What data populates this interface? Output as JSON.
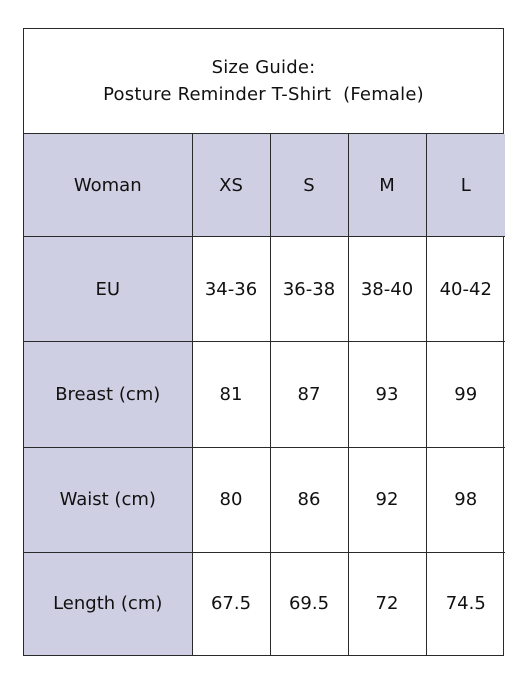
{
  "title": {
    "line1": "Size Guide:",
    "line2": "Posture Reminder T-Shirt  (Female)"
  },
  "table": {
    "header": {
      "label": "Woman",
      "sizes": [
        "XS",
        "S",
        "M",
        "L"
      ]
    },
    "rows": [
      {
        "label": "EU",
        "values": [
          "34-36",
          "36-38",
          "38-40",
          "40-42"
        ]
      },
      {
        "label": "Breast (cm)",
        "values": [
          "81",
          "87",
          "93",
          "99"
        ]
      },
      {
        "label": "Waist (cm)",
        "values": [
          "80",
          "86",
          "92",
          "98"
        ]
      },
      {
        "label": "Length (cm)",
        "values": [
          "67.5",
          "69.5",
          "72",
          "74.5"
        ]
      }
    ]
  },
  "colors": {
    "header_fill": "#cfcfe3",
    "border": "#2a2a2a"
  }
}
